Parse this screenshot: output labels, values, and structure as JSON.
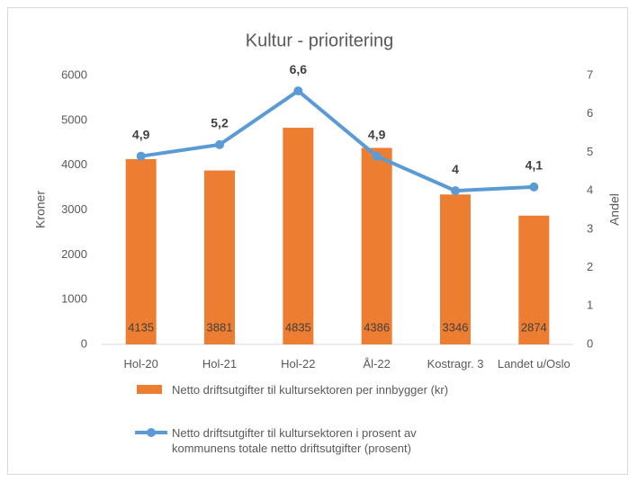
{
  "chart_data": {
    "type": "bar-line",
    "title": "Kultur - prioritering",
    "y_label": "Kroner",
    "y2_label": "Andel",
    "categories": [
      "Hol-20",
      "Hol-21",
      "Hol-22",
      "Ål-22",
      "Kostragr. 3",
      "Landet u/Oslo"
    ],
    "series": [
      {
        "name": "Netto driftsutgifter til kultursektoren per innbygger (kr)",
        "type": "bar",
        "color": "#ed7d31",
        "values": [
          4135,
          3881,
          4835,
          4386,
          3346,
          2874
        ]
      },
      {
        "name": "Netto driftsutgifter til kultursektoren i prosent av kommunens totale netto driftsutgifter (prosent)",
        "type": "line",
        "axis": "y2",
        "color": "#5b9bd5",
        "values": [
          4.9,
          5.2,
          6.6,
          4.9,
          4,
          4.1
        ],
        "value_labels": [
          "4,9",
          "5,2",
          "6,6",
          "4,9",
          "4",
          "4,1"
        ]
      }
    ],
    "ylim": [
      0,
      6000
    ],
    "yticks": [
      0,
      1000,
      2000,
      3000,
      4000,
      5000,
      6000
    ],
    "y2lim": [
      0,
      7
    ],
    "y2ticks": [
      0,
      1,
      2,
      3,
      4,
      5,
      6,
      7
    ],
    "grid": false,
    "legend": "bottom"
  }
}
